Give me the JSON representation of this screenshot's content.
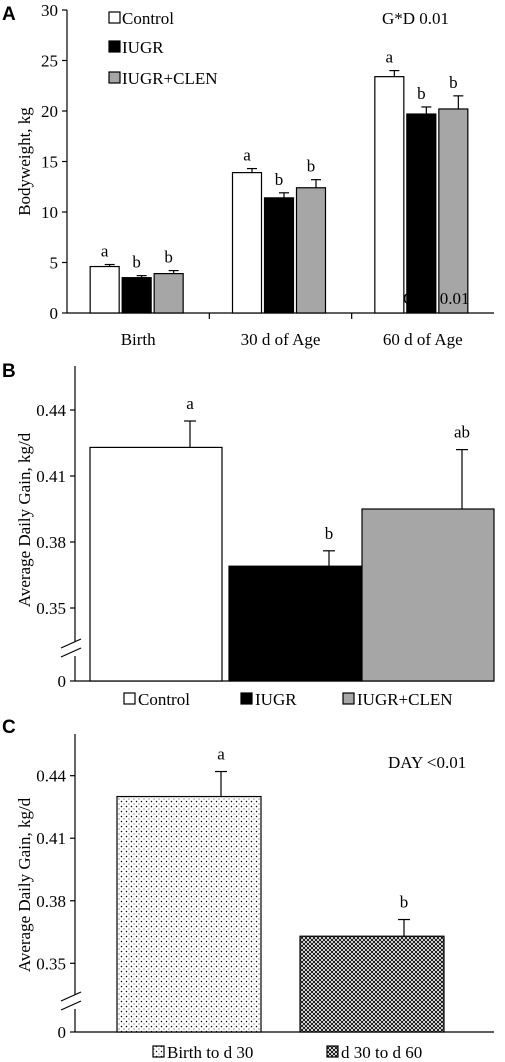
{
  "colors": {
    "control": "#ffffff",
    "iugr": "#000000",
    "iugr_clen": "#a6a6a6",
    "axis": "#000000"
  },
  "chart_data": [
    {
      "type": "bar",
      "panel_label": "A",
      "ylabel": "Bodyweight, kg",
      "ylim": [
        0,
        30
      ],
      "yticks": [
        "0",
        "5",
        "10",
        "15",
        "20",
        "25",
        "30"
      ],
      "categories": [
        "Birth",
        "30 d of Age",
        "60 d of Age"
      ],
      "series": [
        {
          "name": "Control",
          "color": "#ffffff",
          "values": [
            4.6,
            13.9,
            23.4
          ],
          "errors": [
            0.2,
            0.4,
            0.6
          ],
          "letters": [
            "a",
            "a",
            "a"
          ]
        },
        {
          "name": "IUGR",
          "color": "#000000",
          "values": [
            3.5,
            11.4,
            19.7
          ],
          "errors": [
            0.2,
            0.5,
            0.7
          ],
          "letters": [
            "b",
            "b",
            "b"
          ]
        },
        {
          "name": "IUGR+CLEN",
          "color": "#a6a6a6",
          "values": [
            3.9,
            12.4,
            20.2
          ],
          "errors": [
            0.3,
            0.8,
            1.3
          ],
          "letters": [
            "b",
            "b",
            "b"
          ]
        }
      ],
      "annotation": "G*D    0.01",
      "legend": "top-left",
      "grid": false
    },
    {
      "type": "bar",
      "panel_label": "B",
      "ylabel": "Average Daily Gain, kg/d",
      "ylim": [
        0.33,
        0.46
      ],
      "axis_break": true,
      "yticks": [
        "0",
        "0.35",
        "0.38",
        "0.41",
        "0.44"
      ],
      "categories": [
        "Control",
        "IUGR",
        "IUGR+CLEN"
      ],
      "colors": [
        "#ffffff",
        "#000000",
        "#a6a6a6"
      ],
      "values": [
        0.423,
        0.369,
        0.395
      ],
      "errors": [
        0.012,
        0.007,
        0.027
      ],
      "letters": [
        "a",
        "b",
        "ab"
      ],
      "annotation": "GRP    0.01",
      "legend": "bottom",
      "grid": false
    },
    {
      "type": "bar",
      "panel_label": "C",
      "ylabel": "Average Daily Gain, kg/d",
      "ylim": [
        0.33,
        0.46
      ],
      "axis_break": true,
      "yticks": [
        "0",
        "0.35",
        "0.38",
        "0.41",
        "0.44"
      ],
      "categories": [
        "Birth to d 30",
        "d 30 to d 60"
      ],
      "patterns": [
        "dots",
        "crosshatch"
      ],
      "values": [
        0.43,
        0.363
      ],
      "errors": [
        0.012,
        0.008
      ],
      "letters": [
        "a",
        "b"
      ],
      "annotation": "DAY <0.01",
      "legend": "bottom",
      "grid": false
    }
  ]
}
